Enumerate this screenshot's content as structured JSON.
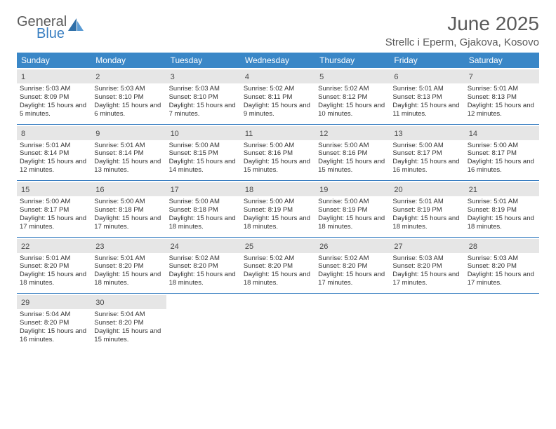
{
  "logo": {
    "top": "General",
    "bottom": "Blue"
  },
  "title": "June 2025",
  "subtitle": "Strellc i Eperm, Gjakova, Kosovo",
  "colors": {
    "header_bg": "#3a87c7",
    "daynum_bg": "#e6e6e6",
    "sep": "#3a7fc2",
    "text": "#333333",
    "title_text": "#5a5a5a"
  },
  "dow": [
    "Sunday",
    "Monday",
    "Tuesday",
    "Wednesday",
    "Thursday",
    "Friday",
    "Saturday"
  ],
  "days": [
    {
      "n": "1",
      "sr": "5:03 AM",
      "ss": "8:09 PM",
      "dl": "15 hours and 5 minutes."
    },
    {
      "n": "2",
      "sr": "5:03 AM",
      "ss": "8:10 PM",
      "dl": "15 hours and 6 minutes."
    },
    {
      "n": "3",
      "sr": "5:03 AM",
      "ss": "8:10 PM",
      "dl": "15 hours and 7 minutes."
    },
    {
      "n": "4",
      "sr": "5:02 AM",
      "ss": "8:11 PM",
      "dl": "15 hours and 9 minutes."
    },
    {
      "n": "5",
      "sr": "5:02 AM",
      "ss": "8:12 PM",
      "dl": "15 hours and 10 minutes."
    },
    {
      "n": "6",
      "sr": "5:01 AM",
      "ss": "8:13 PM",
      "dl": "15 hours and 11 minutes."
    },
    {
      "n": "7",
      "sr": "5:01 AM",
      "ss": "8:13 PM",
      "dl": "15 hours and 12 minutes."
    },
    {
      "n": "8",
      "sr": "5:01 AM",
      "ss": "8:14 PM",
      "dl": "15 hours and 12 minutes."
    },
    {
      "n": "9",
      "sr": "5:01 AM",
      "ss": "8:14 PM",
      "dl": "15 hours and 13 minutes."
    },
    {
      "n": "10",
      "sr": "5:00 AM",
      "ss": "8:15 PM",
      "dl": "15 hours and 14 minutes."
    },
    {
      "n": "11",
      "sr": "5:00 AM",
      "ss": "8:16 PM",
      "dl": "15 hours and 15 minutes."
    },
    {
      "n": "12",
      "sr": "5:00 AM",
      "ss": "8:16 PM",
      "dl": "15 hours and 15 minutes."
    },
    {
      "n": "13",
      "sr": "5:00 AM",
      "ss": "8:17 PM",
      "dl": "15 hours and 16 minutes."
    },
    {
      "n": "14",
      "sr": "5:00 AM",
      "ss": "8:17 PM",
      "dl": "15 hours and 16 minutes."
    },
    {
      "n": "15",
      "sr": "5:00 AM",
      "ss": "8:17 PM",
      "dl": "15 hours and 17 minutes."
    },
    {
      "n": "16",
      "sr": "5:00 AM",
      "ss": "8:18 PM",
      "dl": "15 hours and 17 minutes."
    },
    {
      "n": "17",
      "sr": "5:00 AM",
      "ss": "8:18 PM",
      "dl": "15 hours and 18 minutes."
    },
    {
      "n": "18",
      "sr": "5:00 AM",
      "ss": "8:19 PM",
      "dl": "15 hours and 18 minutes."
    },
    {
      "n": "19",
      "sr": "5:00 AM",
      "ss": "8:19 PM",
      "dl": "15 hours and 18 minutes."
    },
    {
      "n": "20",
      "sr": "5:01 AM",
      "ss": "8:19 PM",
      "dl": "15 hours and 18 minutes."
    },
    {
      "n": "21",
      "sr": "5:01 AM",
      "ss": "8:19 PM",
      "dl": "15 hours and 18 minutes."
    },
    {
      "n": "22",
      "sr": "5:01 AM",
      "ss": "8:20 PM",
      "dl": "15 hours and 18 minutes."
    },
    {
      "n": "23",
      "sr": "5:01 AM",
      "ss": "8:20 PM",
      "dl": "15 hours and 18 minutes."
    },
    {
      "n": "24",
      "sr": "5:02 AM",
      "ss": "8:20 PM",
      "dl": "15 hours and 18 minutes."
    },
    {
      "n": "25",
      "sr": "5:02 AM",
      "ss": "8:20 PM",
      "dl": "15 hours and 18 minutes."
    },
    {
      "n": "26",
      "sr": "5:02 AM",
      "ss": "8:20 PM",
      "dl": "15 hours and 17 minutes."
    },
    {
      "n": "27",
      "sr": "5:03 AM",
      "ss": "8:20 PM",
      "dl": "15 hours and 17 minutes."
    },
    {
      "n": "28",
      "sr": "5:03 AM",
      "ss": "8:20 PM",
      "dl": "15 hours and 17 minutes."
    },
    {
      "n": "29",
      "sr": "5:04 AM",
      "ss": "8:20 PM",
      "dl": "15 hours and 16 minutes."
    },
    {
      "n": "30",
      "sr": "5:04 AM",
      "ss": "8:20 PM",
      "dl": "15 hours and 15 minutes."
    }
  ],
  "labels": {
    "sunrise": "Sunrise:",
    "sunset": "Sunset:",
    "daylight": "Daylight:"
  }
}
